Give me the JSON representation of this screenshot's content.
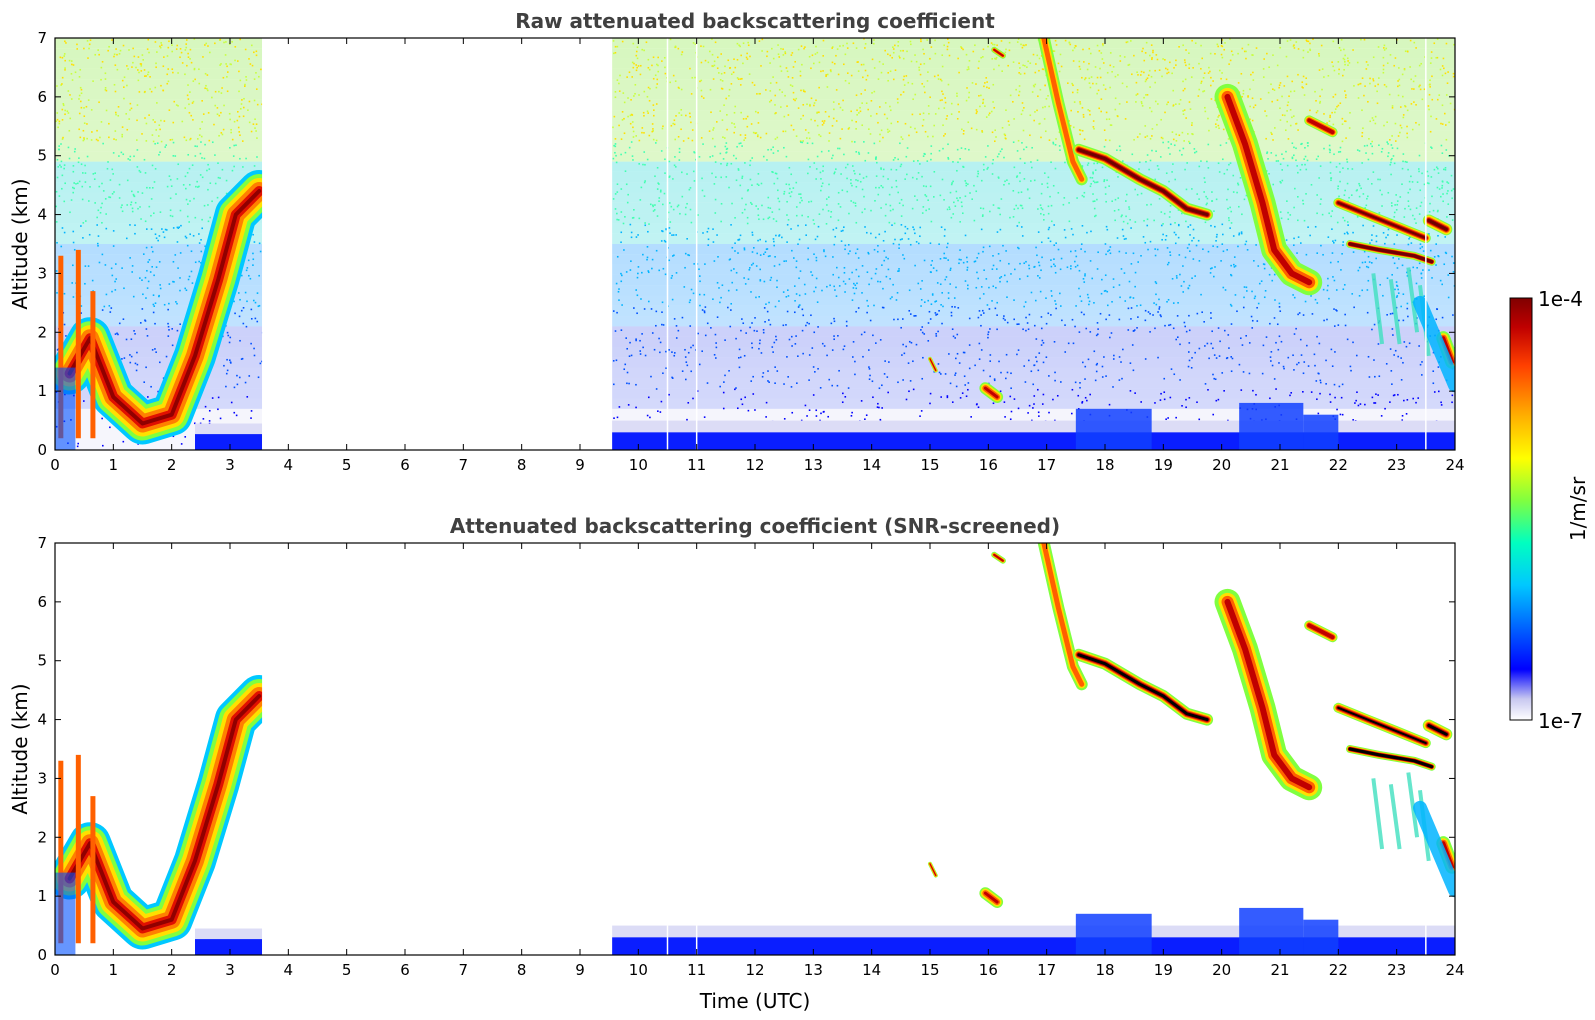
{
  "chart_data": [
    {
      "type": "heatmap",
      "title": "Raw attenuated backscattering coefficient",
      "xlabel": "",
      "ylabel": "Altitude (km)",
      "xlim": [
        0,
        24
      ],
      "ylim": [
        0,
        7
      ],
      "xticks": [
        "0",
        "1",
        "2",
        "3",
        "4",
        "5",
        "6",
        "7",
        "8",
        "9",
        "10",
        "11",
        "12",
        "13",
        "14",
        "15",
        "16",
        "17",
        "18",
        "19",
        "20",
        "21",
        "22",
        "23",
        "24"
      ],
      "yticks": [
        "0",
        "1",
        "2",
        "3",
        "4",
        "5",
        "6",
        "7"
      ],
      "data_gaps": [
        [
          3.55,
          9.55
        ]
      ],
      "features": [
        {
          "kind": "boundary_layer_arc",
          "t_start": 0.0,
          "t_end": 3.55,
          "alt_min": 0.3,
          "alt_max": 4.6
        },
        {
          "kind": "near_surface_blue_layer",
          "t_start": 9.55,
          "t_end": 24.0,
          "alt_top": 0.5
        },
        {
          "kind": "cloud_layer",
          "t_start": 17.5,
          "t_end": 19.8,
          "alt_start": 5.1,
          "alt_end": 4.0
        },
        {
          "kind": "precipitating_streak",
          "t_start": 20.2,
          "t_end": 21.6,
          "alt_start": 6.0,
          "alt_end": 2.8
        },
        {
          "kind": "cloud_layer",
          "t_start": 22.0,
          "t_end": 24.0,
          "alt_start": 4.2,
          "alt_end": 3.3
        }
      ]
    },
    {
      "type": "heatmap",
      "title": "Attenuated backscattering coefficient (SNR-screened)",
      "xlabel": "Time (UTC)",
      "ylabel": "Altitude (km)",
      "xlim": [
        0,
        24
      ],
      "ylim": [
        0,
        7
      ],
      "xticks": [
        "0",
        "1",
        "2",
        "3",
        "4",
        "5",
        "6",
        "7",
        "8",
        "9",
        "10",
        "11",
        "12",
        "13",
        "14",
        "15",
        "16",
        "17",
        "18",
        "19",
        "20",
        "21",
        "22",
        "23",
        "24"
      ],
      "yticks": [
        "0",
        "1",
        "2",
        "3",
        "4",
        "5",
        "6",
        "7"
      ],
      "data_gaps": [
        [
          3.55,
          9.55
        ]
      ],
      "screened": true
    }
  ],
  "colorbar": {
    "min_label": "1e-7",
    "max_label": "1e-4",
    "unit_label": "1/m/sr",
    "scale": "log",
    "colormap": [
      "#ffffff",
      "#c8c8f0",
      "#0000ff",
      "#0064ff",
      "#00c8ff",
      "#00ffc0",
      "#80ff40",
      "#ffff00",
      "#ffb000",
      "#ff4000",
      "#c00000",
      "#800000"
    ]
  }
}
